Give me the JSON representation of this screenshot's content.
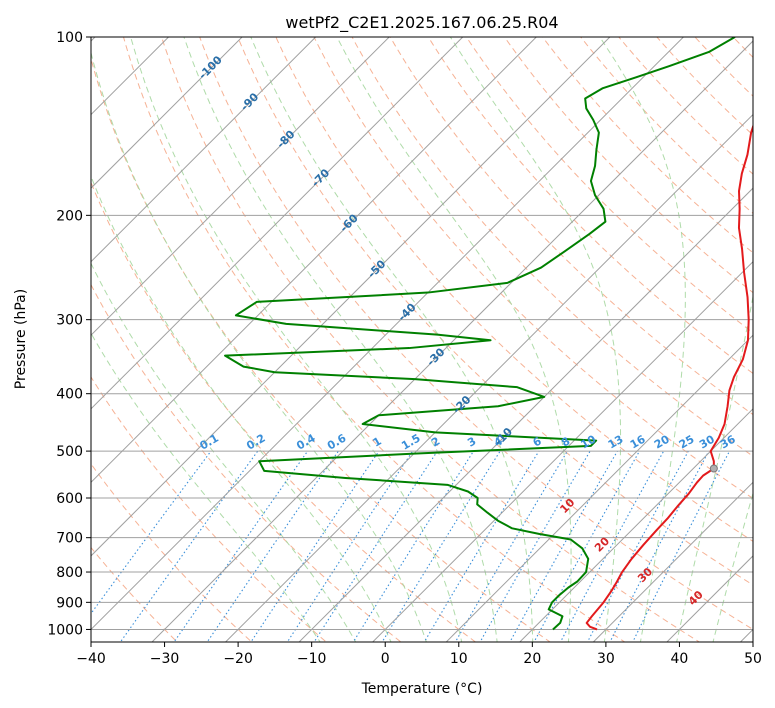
{
  "chart_data": {
    "type": "line",
    "title": "wetPf2_C2E1.2025.167.06.25.R04",
    "xlabel": "Temperature (°C)",
    "ylabel": "Pressure (hPa)",
    "xlim": [
      -40,
      50
    ],
    "ylim": [
      1050,
      100
    ],
    "y_scale": "log",
    "skew": true,
    "grid": true,
    "x_ticks": [
      "−40",
      "−30",
      "−20",
      "−10",
      "0",
      "10",
      "20",
      "30",
      "40",
      "50"
    ],
    "x_tick_values": [
      -40,
      -30,
      -20,
      -10,
      0,
      10,
      20,
      30,
      40,
      50
    ],
    "y_ticks": [
      "100",
      "200",
      "300",
      "400",
      "500",
      "600",
      "700",
      "800",
      "900",
      "1000"
    ],
    "y_tick_values": [
      100,
      200,
      300,
      400,
      500,
      600,
      700,
      800,
      900,
      1000
    ],
    "dry_adiabat_labels": [
      "-100",
      "-90",
      "-80",
      "-70",
      "-60",
      "-50",
      "-40",
      "-30",
      "-20",
      "-10"
    ],
    "moist_adiabat_labels": [
      "10",
      "20",
      "30",
      "40"
    ],
    "mixing_ratio_labels": [
      "0.1",
      "0.2",
      "0.4",
      "0.6",
      "1",
      "1.5",
      "2",
      "3",
      "4",
      "6",
      "8",
      "10",
      "13",
      "16",
      "20",
      "25",
      "30",
      "36"
    ],
    "colors": {
      "temperature": "#e31a1c",
      "dewpoint": "#008000",
      "dry_adiabat": "#f4a582",
      "moist_adiabat": "#a6d7a0",
      "mixing_ratio": "#3a8fd9",
      "dry_label": "#2a6fa8",
      "moist_label": "#d62728",
      "isotherm": "#a0a0a0",
      "isobar": "#a0a0a0"
    },
    "series": [
      {
        "key": "temperature",
        "points": [
          [
            28.8,
            1000
          ],
          [
            27.5,
            990
          ],
          [
            26.5,
            975
          ],
          [
            26.3,
            950
          ],
          [
            26.0,
            900
          ],
          [
            25.5,
            860
          ],
          [
            25.0,
            830
          ],
          [
            24.4,
            800
          ],
          [
            23.9,
            760
          ],
          [
            23.6,
            720
          ],
          [
            23.4,
            680
          ],
          [
            23.3,
            650
          ],
          [
            23.0,
            620
          ],
          [
            22.8,
            590
          ],
          [
            22.4,
            565
          ],
          [
            22.3,
            550
          ],
          [
            22.8,
            535
          ],
          [
            21.8,
            520
          ],
          [
            20.0,
            500
          ],
          [
            19.3,
            475
          ],
          [
            18.2,
            450
          ],
          [
            16.2,
            420
          ],
          [
            14.3,
            395
          ],
          [
            13.1,
            375
          ],
          [
            11.9,
            350
          ],
          [
            10.0,
            325
          ],
          [
            7.3,
            300
          ],
          [
            4.1,
            275
          ],
          [
            0.3,
            250
          ],
          [
            -3.2,
            228
          ],
          [
            -6.5,
            210
          ],
          [
            -9.0,
            195
          ],
          [
            -11.5,
            182
          ],
          [
            -13.5,
            170
          ],
          [
            -15.3,
            158
          ],
          [
            -17.8,
            145
          ],
          [
            -19.5,
            135
          ],
          [
            -20.8,
            128
          ],
          [
            -22.2,
            122
          ],
          [
            -24.3,
            115
          ],
          [
            -25.8,
            108
          ],
          [
            -26.5,
            102
          ],
          [
            -26.8,
            100
          ]
        ]
      },
      {
        "key": "dewpoint",
        "points": [
          [
            22.8,
            1000
          ],
          [
            22.9,
            975
          ],
          [
            22.3,
            950
          ],
          [
            19.5,
            925
          ],
          [
            19.0,
            900
          ],
          [
            19.0,
            875
          ],
          [
            19.2,
            850
          ],
          [
            19.6,
            830
          ],
          [
            19.5,
            800
          ],
          [
            18.0,
            760
          ],
          [
            15.8,
            730
          ],
          [
            13.0,
            705
          ],
          [
            8.0,
            690
          ],
          [
            3.5,
            675
          ],
          [
            0.5,
            655
          ],
          [
            -2.0,
            635
          ],
          [
            -4.5,
            615
          ],
          [
            -5.3,
            600
          ],
          [
            -7.5,
            585
          ],
          [
            -11.2,
            570
          ],
          [
            -26.0,
            555
          ],
          [
            -38.0,
            540
          ],
          [
            -40.0,
            520
          ],
          [
            -20.0,
            505
          ],
          [
            3.0,
            490
          ],
          [
            3.0,
            480
          ],
          [
            -20.0,
            465
          ],
          [
            -31.0,
            450
          ],
          [
            -30.0,
            435
          ],
          [
            -15.0,
            420
          ],
          [
            -10.0,
            405
          ],
          [
            -15.0,
            390
          ],
          [
            -30.0,
            378
          ],
          [
            -50.0,
            368
          ],
          [
            -55.0,
            360
          ],
          [
            -59.0,
            345
          ],
          [
            -35.0,
            335
          ],
          [
            -25.0,
            325
          ],
          [
            -33.0,
            318
          ],
          [
            -55.0,
            305
          ],
          [
            -63.0,
            295
          ],
          [
            -62.0,
            280
          ],
          [
            -40.0,
            270
          ],
          [
            -30.5,
            260
          ],
          [
            -28.0,
            245
          ],
          [
            -27.0,
            230
          ],
          [
            -26.0,
            215
          ],
          [
            -25.5,
            205
          ],
          [
            -27.5,
            195
          ],
          [
            -30.5,
            185
          ],
          [
            -33.0,
            175
          ],
          [
            -34.5,
            165
          ],
          [
            -36.5,
            155
          ],
          [
            -38.5,
            145
          ],
          [
            -41.0,
            138
          ],
          [
            -43.5,
            132
          ],
          [
            -45.0,
            127
          ],
          [
            -44.0,
            122
          ],
          [
            -41.0,
            117
          ],
          [
            -38.0,
            112
          ],
          [
            -34.5,
            106
          ],
          [
            -33.0,
            100
          ]
        ]
      }
    ],
    "lcl": {
      "t": 22.8,
      "p": 535
    }
  }
}
